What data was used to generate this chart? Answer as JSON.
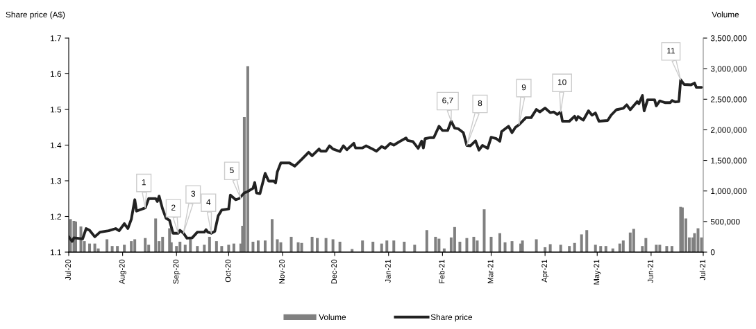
{
  "chart_data": {
    "type": "line",
    "ylabel": "Share price (A$)",
    "y2label": "Volume",
    "xlim": [
      "2020-07-01",
      "2021-07-01"
    ],
    "xticks": [
      {
        "value": "2020-07-01",
        "label": "Jul-20"
      },
      {
        "value": "2020-08-01",
        "label": "Aug-20"
      },
      {
        "value": "2020-09-01",
        "label": "Sep-20"
      },
      {
        "value": "2020-10-01",
        "label": "Oct-20"
      },
      {
        "value": "2020-11-01",
        "label": "Nov-20"
      },
      {
        "value": "2020-12-01",
        "label": "Dec-20"
      },
      {
        "value": "2021-01-01",
        "label": "Jan-21"
      },
      {
        "value": "2021-02-01",
        "label": "Feb-21"
      },
      {
        "value": "2021-03-01",
        "label": "Mar-21"
      },
      {
        "value": "2021-04-01",
        "label": "Apr-21"
      },
      {
        "value": "2021-05-01",
        "label": "May-21"
      },
      {
        "value": "2021-06-01",
        "label": "Jun-21"
      },
      {
        "value": "2021-07-01",
        "label": "Jul-21"
      }
    ],
    "ylim": [
      1.1,
      1.7
    ],
    "yticks": [
      1.1,
      1.2,
      1.3,
      1.4,
      1.5,
      1.6,
      1.7
    ],
    "y2lim": [
      0,
      3500000
    ],
    "y2ticks": [
      {
        "value": 0,
        "label": "0"
      },
      {
        "value": 500000,
        "label": "500,000"
      },
      {
        "value": 1000000,
        "label": "1,000,000"
      },
      {
        "value": 1500000,
        "label": "1,500,000"
      },
      {
        "value": 2000000,
        "label": "2,000,000"
      },
      {
        "value": 2500000,
        "label": "2,500,000"
      },
      {
        "value": 3000000,
        "label": "3,000,000"
      },
      {
        "value": 3500000,
        "label": "3,500,000"
      }
    ],
    "grid": false,
    "legend": "bottom",
    "marker": "none",
    "line_style": "solid",
    "series": [
      {
        "name": "Volume",
        "type": "bar",
        "axis": "y2",
        "color": "#808080",
        "x": [
          "2020-07-02",
          "2020-07-04",
          "2020-07-05",
          "2020-07-08",
          "2020-07-10",
          "2020-07-13",
          "2020-07-16",
          "2020-07-18",
          "2020-07-23",
          "2020-07-26",
          "2020-07-29",
          "2020-08-02",
          "2020-08-06",
          "2020-08-08",
          "2020-08-14",
          "2020-08-16",
          "2020-08-20",
          "2020-08-22",
          "2020-08-24",
          "2020-08-28",
          "2020-08-29",
          "2020-09-01",
          "2020-09-03",
          "2020-09-06",
          "2020-09-09",
          "2020-09-13",
          "2020-09-17",
          "2020-09-20",
          "2020-09-24",
          "2020-09-27",
          "2020-10-01",
          "2020-10-04",
          "2020-10-08",
          "2020-10-09",
          "2020-10-10",
          "2020-10-12",
          "2020-10-15",
          "2020-10-18",
          "2020-10-22",
          "2020-10-26",
          "2020-10-29",
          "2020-10-31",
          "2020-11-06",
          "2020-11-10",
          "2020-11-12",
          "2020-11-18",
          "2020-11-21",
          "2020-11-26",
          "2020-11-30",
          "2020-12-04",
          "2020-12-11",
          "2020-12-17",
          "2020-12-23",
          "2020-12-28",
          "2020-12-31",
          "2021-01-04",
          "2021-01-10",
          "2021-01-16",
          "2021-01-23",
          "2021-01-28",
          "2021-01-30",
          "2021-02-02",
          "2021-02-06",
          "2021-02-08",
          "2021-02-11",
          "2021-02-15",
          "2021-02-19",
          "2021-02-21",
          "2021-02-25",
          "2021-03-01",
          "2021-03-06",
          "2021-03-09",
          "2021-03-13",
          "2021-03-18",
          "2021-03-19",
          "2021-03-27",
          "2021-04-01",
          "2021-04-04",
          "2021-04-10",
          "2021-04-15",
          "2021-04-18",
          "2021-04-22",
          "2021-04-25",
          "2021-04-30",
          "2021-05-03",
          "2021-05-06",
          "2021-05-10",
          "2021-05-14",
          "2021-05-16",
          "2021-05-20",
          "2021-05-22",
          "2021-05-27",
          "2021-05-29",
          "2021-06-04",
          "2021-06-06",
          "2021-06-10",
          "2021-06-13",
          "2021-06-18",
          "2021-06-19",
          "2021-06-21",
          "2021-06-23",
          "2021-06-25",
          "2021-06-26",
          "2021-06-28",
          "2021-06-30"
        ],
        "values": [
          540000,
          510000,
          500000,
          420000,
          180000,
          140000,
          140000,
          60000,
          210000,
          100000,
          100000,
          120000,
          180000,
          210000,
          230000,
          120000,
          550000,
          180000,
          250000,
          390000,
          160000,
          100000,
          170000,
          120000,
          240000,
          100000,
          120000,
          250000,
          180000,
          100000,
          120000,
          140000,
          140000,
          430000,
          2210000,
          3040000,
          170000,
          190000,
          190000,
          540000,
          210000,
          160000,
          250000,
          160000,
          150000,
          250000,
          230000,
          230000,
          210000,
          170000,
          50000,
          190000,
          170000,
          140000,
          190000,
          190000,
          170000,
          120000,
          360000,
          250000,
          220000,
          60000,
          240000,
          410000,
          170000,
          230000,
          250000,
          190000,
          700000,
          250000,
          310000,
          160000,
          180000,
          140000,
          190000,
          210000,
          80000,
          130000,
          120000,
          100000,
          150000,
          290000,
          360000,
          120000,
          100000,
          100000,
          60000,
          140000,
          190000,
          320000,
          380000,
          100000,
          230000,
          120000,
          120000,
          100000,
          100000,
          740000,
          730000,
          550000,
          240000,
          240000,
          310000,
          390000,
          240000
        ]
      },
      {
        "name": "Share price",
        "axis": "y",
        "color": "#222222",
        "x": [
          "2020-07-01",
          "2020-07-03",
          "2020-07-04",
          "2020-07-09",
          "2020-07-11",
          "2020-07-13",
          "2020-07-16",
          "2020-07-19",
          "2020-07-24",
          "2020-07-28",
          "2020-07-30",
          "2020-08-02",
          "2020-08-04",
          "2020-08-06",
          "2020-08-08",
          "2020-08-09",
          "2020-08-14",
          "2020-08-16",
          "2020-08-20",
          "2020-08-21",
          "2020-08-22",
          "2020-08-24",
          "2020-08-26",
          "2020-08-28",
          "2020-08-30",
          "2020-09-02",
          "2020-09-03",
          "2020-09-05",
          "2020-09-07",
          "2020-09-10",
          "2020-09-13",
          "2020-09-17",
          "2020-09-18",
          "2020-09-19",
          "2020-09-21",
          "2020-09-23",
          "2020-09-25",
          "2020-09-27",
          "2020-10-01",
          "2020-10-02",
          "2020-10-05",
          "2020-10-07",
          "2020-10-10",
          "2020-10-12",
          "2020-10-15",
          "2020-10-16",
          "2020-10-17",
          "2020-10-19",
          "2020-10-22",
          "2020-10-24",
          "2020-10-27",
          "2020-10-28",
          "2020-10-29",
          "2020-10-31",
          "2020-11-05",
          "2020-11-08",
          "2020-11-12",
          "2020-11-16",
          "2020-11-18",
          "2020-11-22",
          "2020-11-23",
          "2020-11-26",
          "2020-11-28",
          "2020-11-30",
          "2020-12-04",
          "2020-12-06",
          "2020-12-08",
          "2020-12-12",
          "2020-12-13",
          "2020-12-17",
          "2020-12-19",
          "2020-12-22",
          "2020-12-25",
          "2020-12-28",
          "2020-12-30",
          "2021-01-02",
          "2021-01-04",
          "2021-01-07",
          "2021-01-11",
          "2021-01-12",
          "2021-01-15",
          "2021-01-18",
          "2021-01-20",
          "2021-01-21",
          "2021-01-22",
          "2021-01-25",
          "2021-01-27",
          "2021-01-30",
          "2021-02-01",
          "2021-02-04",
          "2021-02-06",
          "2021-02-08",
          "2021-02-10",
          "2021-02-13",
          "2021-02-15",
          "2021-02-17",
          "2021-02-20",
          "2021-02-22",
          "2021-02-24",
          "2021-02-27",
          "2021-03-01",
          "2021-03-04",
          "2021-03-06",
          "2021-03-07",
          "2021-03-11",
          "2021-03-13",
          "2021-03-15",
          "2021-03-17",
          "2021-03-21",
          "2021-03-24",
          "2021-03-27",
          "2021-03-29",
          "2021-04-01",
          "2021-04-04",
          "2021-04-06",
          "2021-04-08",
          "2021-04-10",
          "2021-04-11",
          "2021-04-15",
          "2021-04-18",
          "2021-04-19",
          "2021-04-20",
          "2021-04-23",
          "2021-04-26",
          "2021-04-28",
          "2021-04-30",
          "2021-05-02",
          "2021-05-07",
          "2021-05-09",
          "2021-05-12",
          "2021-05-16",
          "2021-05-18",
          "2021-05-20",
          "2021-05-24",
          "2021-05-25",
          "2021-05-27",
          "2021-05-28",
          "2021-05-30",
          "2021-06-03",
          "2021-06-04",
          "2021-06-06",
          "2021-06-09",
          "2021-06-12",
          "2021-06-13",
          "2021-06-15",
          "2021-06-17",
          "2021-06-18",
          "2021-06-20",
          "2021-06-24",
          "2021-06-26",
          "2021-06-27",
          "2021-06-30"
        ],
        "values": [
          1.143,
          1.13,
          1.14,
          1.137,
          1.166,
          1.161,
          1.143,
          1.156,
          1.16,
          1.166,
          1.16,
          1.18,
          1.166,
          1.192,
          1.247,
          1.215,
          1.224,
          1.25,
          1.25,
          1.242,
          1.257,
          1.221,
          1.195,
          1.189,
          1.153,
          1.153,
          1.161,
          1.153,
          1.139,
          1.14,
          1.156,
          1.156,
          1.163,
          1.156,
          1.153,
          1.158,
          1.202,
          1.218,
          1.221,
          1.26,
          1.247,
          1.25,
          1.266,
          1.27,
          1.279,
          1.295,
          1.266,
          1.264,
          1.321,
          1.299,
          1.299,
          1.294,
          1.325,
          1.35,
          1.35,
          1.341,
          1.36,
          1.38,
          1.37,
          1.389,
          1.383,
          1.383,
          1.398,
          1.389,
          1.382,
          1.398,
          1.387,
          1.405,
          1.392,
          1.392,
          1.398,
          1.391,
          1.383,
          1.396,
          1.391,
          1.405,
          1.4,
          1.409,
          1.42,
          1.413,
          1.41,
          1.391,
          1.411,
          1.392,
          1.418,
          1.421,
          1.421,
          1.453,
          1.441,
          1.441,
          1.467,
          1.448,
          1.446,
          1.435,
          1.399,
          1.398,
          1.412,
          1.386,
          1.399,
          1.391,
          1.422,
          1.418,
          1.411,
          1.438,
          1.453,
          1.435,
          1.45,
          1.457,
          1.477,
          1.477,
          1.5,
          1.493,
          1.504,
          1.491,
          1.493,
          1.486,
          1.493,
          1.467,
          1.467,
          1.481,
          1.47,
          1.48,
          1.47,
          1.496,
          1.484,
          1.49,
          1.467,
          1.469,
          1.484,
          1.499,
          1.503,
          1.513,
          1.499,
          1.522,
          1.516,
          1.539,
          1.496,
          1.527,
          1.527,
          1.51,
          1.524,
          1.519,
          1.519,
          1.525,
          1.521,
          1.522,
          1.583,
          1.57,
          1.569,
          1.574,
          1.562,
          1.562
        ]
      }
    ],
    "annotations": [
      {
        "text": "1",
        "x": "2020-08-14",
        "y": 1.224
      },
      {
        "text": "2",
        "x": "2020-09-02",
        "y": 1.153
      },
      {
        "text": "3",
        "x": "2020-09-05",
        "y": 1.153
      },
      {
        "text": "4",
        "x": "2020-09-21",
        "y": 1.153
      },
      {
        "text": "5",
        "x": "2020-10-08",
        "y": 1.25
      },
      {
        "text": "6,7",
        "x": "2021-02-06",
        "y": 1.467
      },
      {
        "text": "8",
        "x": "2021-02-15",
        "y": 1.399
      },
      {
        "text": "9",
        "x": "2021-03-17",
        "y": 1.457
      },
      {
        "text": "10",
        "x": "2021-04-10",
        "y": 1.493
      },
      {
        "text": "11",
        "x": "2021-06-18",
        "y": 1.583
      }
    ]
  }
}
